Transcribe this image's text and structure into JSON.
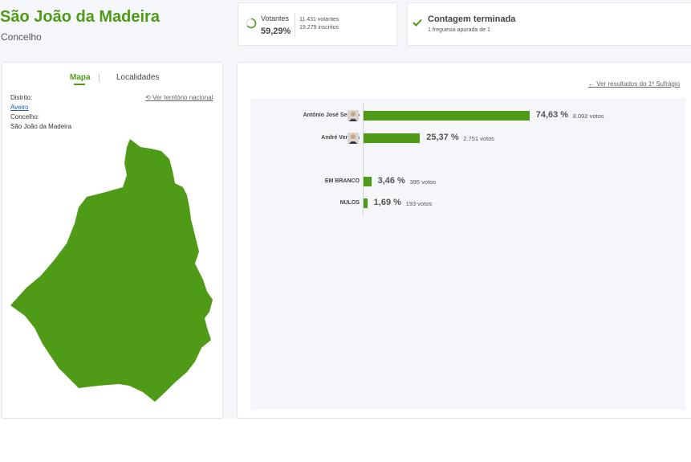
{
  "header": {
    "title": "São João da Madeira",
    "subtitle": "Concelho"
  },
  "votantes": {
    "label": "Votantes",
    "percent": "59,29%",
    "votantes_line": "11.431 votantes",
    "inscritos_line": "19.279 inscritos"
  },
  "contagem": {
    "title": "Contagem terminada",
    "subtitle": "1 freguesia apurada de 1"
  },
  "map_panel": {
    "tabs": [
      "Mapa",
      "Localidades"
    ],
    "active_tab": "Mapa",
    "distrito_label": "Distrito:",
    "distrito_value": "Aveiro",
    "concelho_label": "Concelho:",
    "concelho_value": "São João da Madeira",
    "national_link": "Ver território nacional",
    "map_color": "#4f9a16"
  },
  "results": {
    "round1_link": "Ver resultados do 1º Sufrágio",
    "bar_color": "#4f9a16",
    "rows": [
      {
        "label": "António José Seguro",
        "percent": "74,63 %",
        "value": 74.63,
        "votes": "8.092 votos",
        "avatar": "candidate-photo"
      },
      {
        "label": "André Ventura",
        "percent": "25,37 %",
        "value": 25.37,
        "votes": "2.751 votos",
        "avatar": "candidate-photo"
      },
      {
        "label": "EM BRANCO",
        "percent": "3,46 %",
        "value": 3.46,
        "votes": "395 votos"
      },
      {
        "label": "NULOS",
        "percent": "1,69 %",
        "value": 1.69,
        "votes": "193 votos"
      }
    ]
  }
}
